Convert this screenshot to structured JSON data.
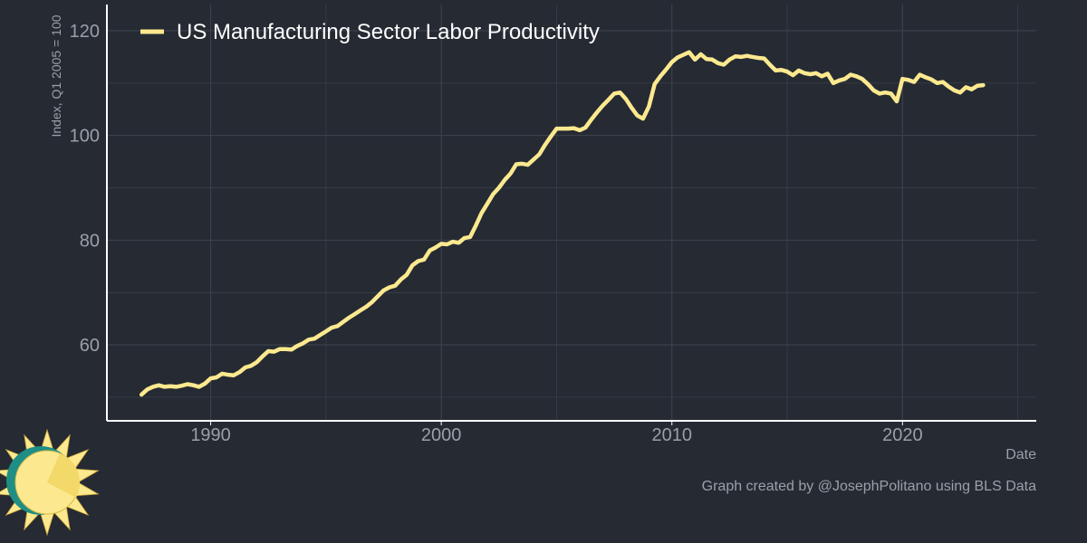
{
  "chart_data": {
    "type": "line",
    "title": "",
    "xlabel": "Date",
    "ylabel": "Index, Q1 2005 = 100",
    "xlim": [
      1985.5,
      2025.8
    ],
    "ylim": [
      45.5,
      125
    ],
    "x_ticks": [
      1990,
      2000,
      2010,
      2020
    ],
    "y_ticks": [
      60,
      80,
      100,
      120
    ],
    "x_tick_labels": [
      "1990",
      "2000",
      "2010",
      "2020"
    ],
    "y_tick_labels": [
      "60",
      "80",
      "100",
      "120"
    ],
    "grid": true,
    "legend_position": "top-left",
    "series": [
      {
        "name": "US Manufacturing Sector Labor Productivity",
        "color": "#fce98f",
        "points": [
          [
            1987.0,
            50.5
          ],
          [
            1987.25,
            51.5
          ],
          [
            1987.5,
            52.0
          ],
          [
            1987.75,
            52.3
          ],
          [
            1988.0,
            52.0
          ],
          [
            1988.25,
            52.1
          ],
          [
            1988.5,
            52.0
          ],
          [
            1988.75,
            52.2
          ],
          [
            1989.0,
            52.5
          ],
          [
            1989.25,
            52.3
          ],
          [
            1989.5,
            52.0
          ],
          [
            1989.75,
            52.6
          ],
          [
            1990.0,
            53.6
          ],
          [
            1990.25,
            53.8
          ],
          [
            1990.5,
            54.5
          ],
          [
            1990.75,
            54.3
          ],
          [
            1991.0,
            54.2
          ],
          [
            1991.25,
            54.8
          ],
          [
            1991.5,
            55.7
          ],
          [
            1991.75,
            56.0
          ],
          [
            1992.0,
            56.7
          ],
          [
            1992.25,
            57.8
          ],
          [
            1992.5,
            58.8
          ],
          [
            1992.75,
            58.7
          ],
          [
            1993.0,
            59.2
          ],
          [
            1993.25,
            59.2
          ],
          [
            1993.5,
            59.1
          ],
          [
            1993.75,
            59.8
          ],
          [
            1994.0,
            60.3
          ],
          [
            1994.25,
            61.0
          ],
          [
            1994.5,
            61.2
          ],
          [
            1994.75,
            61.9
          ],
          [
            1995.0,
            62.6
          ],
          [
            1995.25,
            63.3
          ],
          [
            1995.5,
            63.6
          ],
          [
            1995.75,
            64.4
          ],
          [
            1996.0,
            65.2
          ],
          [
            1996.25,
            65.9
          ],
          [
            1996.5,
            66.6
          ],
          [
            1996.75,
            67.3
          ],
          [
            1997.0,
            68.2
          ],
          [
            1997.25,
            69.3
          ],
          [
            1997.5,
            70.4
          ],
          [
            1997.75,
            71.0
          ],
          [
            1998.0,
            71.3
          ],
          [
            1998.25,
            72.5
          ],
          [
            1998.5,
            73.4
          ],
          [
            1998.75,
            75.2
          ],
          [
            1999.0,
            76.0
          ],
          [
            1999.25,
            76.3
          ],
          [
            1999.5,
            78.0
          ],
          [
            1999.75,
            78.6
          ],
          [
            2000.0,
            79.3
          ],
          [
            2000.25,
            79.2
          ],
          [
            2000.5,
            79.7
          ],
          [
            2000.75,
            79.5
          ],
          [
            2001.0,
            80.4
          ],
          [
            2001.25,
            80.6
          ],
          [
            2001.5,
            82.8
          ],
          [
            2001.75,
            85.2
          ],
          [
            2002.0,
            87.0
          ],
          [
            2002.25,
            88.8
          ],
          [
            2002.5,
            90.0
          ],
          [
            2002.75,
            91.5
          ],
          [
            2003.0,
            92.7
          ],
          [
            2003.25,
            94.5
          ],
          [
            2003.5,
            94.6
          ],
          [
            2003.75,
            94.4
          ],
          [
            2004.0,
            95.4
          ],
          [
            2004.25,
            96.4
          ],
          [
            2004.5,
            98.2
          ],
          [
            2004.75,
            99.8
          ],
          [
            2005.0,
            101.3
          ],
          [
            2005.25,
            101.3
          ],
          [
            2005.5,
            101.3
          ],
          [
            2005.75,
            101.4
          ],
          [
            2006.0,
            101.0
          ],
          [
            2006.25,
            101.5
          ],
          [
            2006.5,
            103.0
          ],
          [
            2006.75,
            104.4
          ],
          [
            2007.0,
            105.7
          ],
          [
            2007.25,
            106.8
          ],
          [
            2007.5,
            108.0
          ],
          [
            2007.75,
            108.2
          ],
          [
            2008.0,
            107.0
          ],
          [
            2008.25,
            105.3
          ],
          [
            2008.5,
            103.8
          ],
          [
            2008.75,
            103.2
          ],
          [
            2009.0,
            105.5
          ],
          [
            2009.25,
            109.8
          ],
          [
            2009.5,
            111.3
          ],
          [
            2009.75,
            112.6
          ],
          [
            2010.0,
            114.0
          ],
          [
            2010.25,
            114.9
          ],
          [
            2010.5,
            115.4
          ],
          [
            2010.75,
            115.9
          ],
          [
            2011.0,
            114.5
          ],
          [
            2011.25,
            115.5
          ],
          [
            2011.5,
            114.6
          ],
          [
            2011.75,
            114.5
          ],
          [
            2012.0,
            113.8
          ],
          [
            2012.25,
            113.5
          ],
          [
            2012.5,
            114.5
          ],
          [
            2012.75,
            115.1
          ],
          [
            2013.0,
            115.0
          ],
          [
            2013.25,
            115.2
          ],
          [
            2013.5,
            115.0
          ],
          [
            2013.75,
            114.8
          ],
          [
            2014.0,
            114.7
          ],
          [
            2014.25,
            113.5
          ],
          [
            2014.5,
            112.4
          ],
          [
            2014.75,
            112.5
          ],
          [
            2015.0,
            112.2
          ],
          [
            2015.25,
            111.5
          ],
          [
            2015.5,
            112.4
          ],
          [
            2015.75,
            111.9
          ],
          [
            2016.0,
            111.7
          ],
          [
            2016.25,
            111.9
          ],
          [
            2016.5,
            111.3
          ],
          [
            2016.75,
            111.8
          ],
          [
            2017.0,
            110.0
          ],
          [
            2017.25,
            110.5
          ],
          [
            2017.5,
            110.8
          ],
          [
            2017.75,
            111.6
          ],
          [
            2018.0,
            111.3
          ],
          [
            2018.25,
            110.8
          ],
          [
            2018.5,
            109.8
          ],
          [
            2018.75,
            108.6
          ],
          [
            2019.0,
            108.0
          ],
          [
            2019.25,
            108.2
          ],
          [
            2019.5,
            108.0
          ],
          [
            2019.75,
            106.5
          ],
          [
            2020.0,
            110.8
          ],
          [
            2020.25,
            110.6
          ],
          [
            2020.5,
            110.2
          ],
          [
            2020.75,
            111.6
          ],
          [
            2021.0,
            111.1
          ],
          [
            2021.25,
            110.7
          ],
          [
            2021.5,
            110.0
          ],
          [
            2021.75,
            110.2
          ],
          [
            2022.0,
            109.3
          ],
          [
            2022.25,
            108.6
          ],
          [
            2022.5,
            108.2
          ],
          [
            2022.75,
            109.2
          ],
          [
            2023.0,
            108.8
          ],
          [
            2023.25,
            109.5
          ],
          [
            2023.5,
            109.6
          ]
        ]
      }
    ]
  },
  "footer": {
    "credit": "Graph created by @JosephPolitano using BLS Data"
  },
  "colors": {
    "background": "#252a33",
    "grid": "#3d434d",
    "axis": "#ffffff",
    "tick_text": "#9aa0a8",
    "legend_text": "#ffffff",
    "line": "#fce98f",
    "logo_sun": "#fce98f",
    "logo_shade": "#f3d86a",
    "logo_ring": "#1f8f85"
  }
}
